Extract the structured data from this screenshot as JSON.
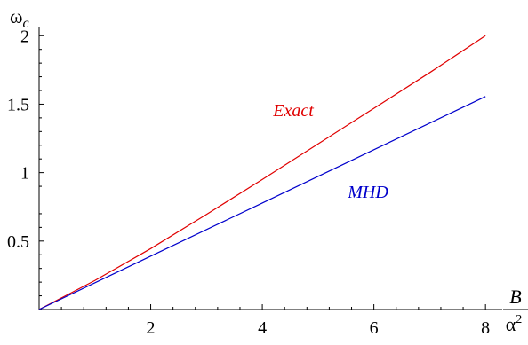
{
  "chart_data": {
    "type": "line",
    "title": "",
    "xlabel": {
      "numerator": "B",
      "denominator_base": "α",
      "denominator_exp": "2"
    },
    "ylabel": {
      "base": "ω",
      "sub": "c"
    },
    "xlim": [
      0,
      8.3
    ],
    "ylim": [
      0,
      2.06
    ],
    "x_ticks": [
      2,
      4,
      6,
      8
    ],
    "y_ticks": [
      0.5,
      1,
      1.5,
      2
    ],
    "x_tick_labels": [
      "2",
      "4",
      "6",
      "8"
    ],
    "y_tick_labels": [
      "0.5",
      "1",
      "1.5",
      "2"
    ],
    "grid": false,
    "legend": "none",
    "series": [
      {
        "name": "Exact",
        "color": "#e00000",
        "x": [
          0,
          1,
          2,
          3,
          4,
          5,
          6,
          7,
          8
        ],
        "y": [
          0,
          0.212,
          0.445,
          0.695,
          0.95,
          1.21,
          1.47,
          1.73,
          2.0
        ]
      },
      {
        "name": "MHD",
        "color": "#0000cc",
        "x": [
          0,
          2,
          4,
          6,
          8
        ],
        "y": [
          0,
          0.39,
          0.778,
          1.167,
          1.556
        ]
      }
    ]
  }
}
